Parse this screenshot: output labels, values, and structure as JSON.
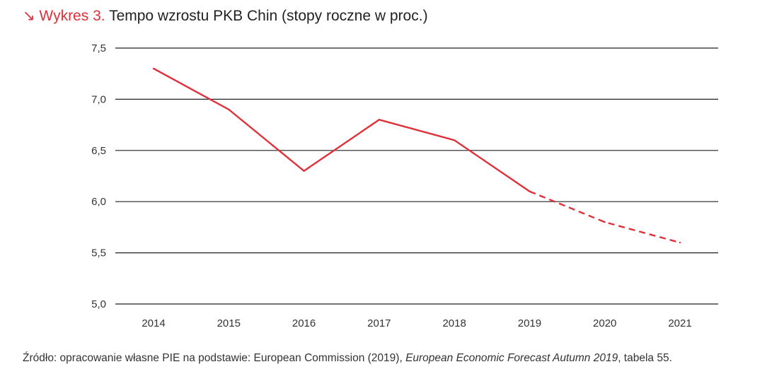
{
  "chart_data": {
    "type": "line",
    "title_prefix": "↘ Wykres 3.",
    "title": "Tempo wzrostu PKB Chin (stopy roczne w proc.)",
    "categories": [
      "2014",
      "2015",
      "2016",
      "2017",
      "2018",
      "2019",
      "2020",
      "2021"
    ],
    "series": [
      {
        "name": "PKB Chin",
        "values": [
          7.3,
          6.9,
          6.3,
          6.8,
          6.6,
          6.1,
          5.8,
          5.6
        ],
        "forecast_from": "2019"
      }
    ],
    "yticks": [
      "5,0",
      "5,5",
      "6,0",
      "6,5",
      "7,0",
      "7,5"
    ],
    "ytick_values": [
      5.0,
      5.5,
      6.0,
      6.5,
      7.0,
      7.5
    ],
    "ylim": [
      5.0,
      7.5
    ],
    "xlabel": "",
    "ylabel": "",
    "grid": true,
    "color": "#e0303a"
  },
  "source": {
    "prefix": "Źródło: opracowanie własne PIE na podstawie: European Commission (2019), ",
    "italic": "European Economic Forecast Autumn 2019",
    "suffix": ", tabela 55."
  }
}
